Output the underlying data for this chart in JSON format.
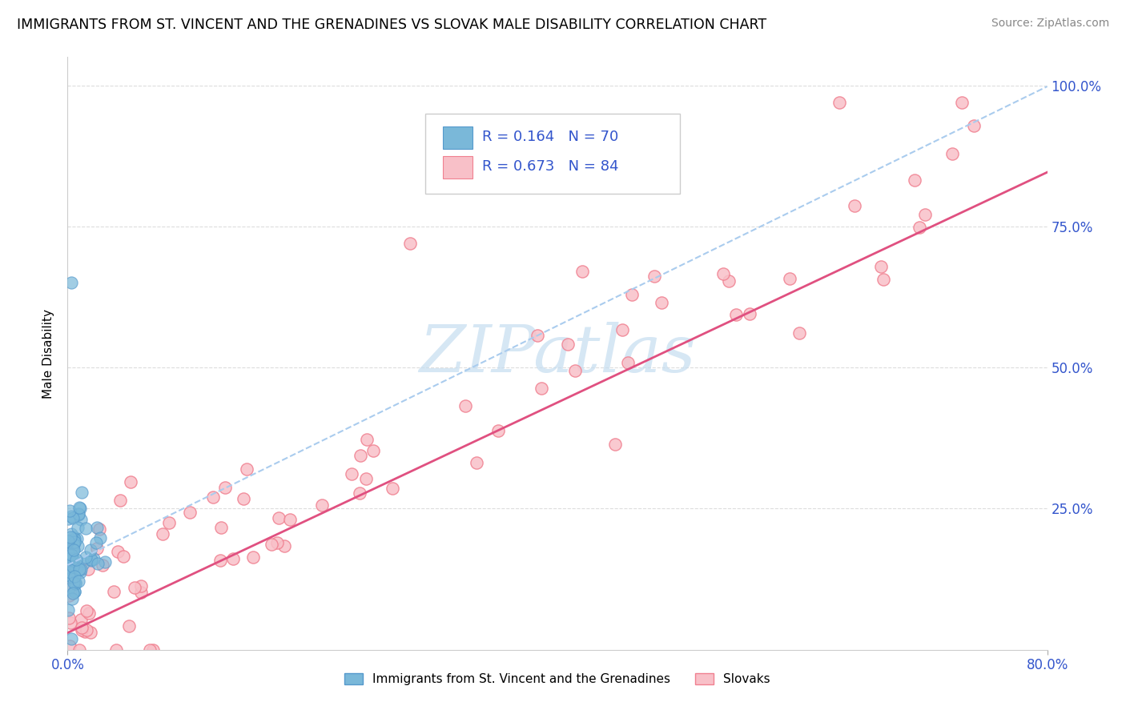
{
  "title": "IMMIGRANTS FROM ST. VINCENT AND THE GRENADINES VS SLOVAK MALE DISABILITY CORRELATION CHART",
  "source": "Source: ZipAtlas.com",
  "ylabel": "Male Disability",
  "y_tick_labels": [
    "100.0%",
    "75.0%",
    "50.0%",
    "25.0%"
  ],
  "y_tick_positions": [
    1.0,
    0.75,
    0.5,
    0.25
  ],
  "legend1_label": "R = 0.164   N = 70",
  "legend2_label": "R = 0.673   N = 84",
  "legend_label_immigrants": "Immigrants from St. Vincent and the Grenadines",
  "legend_label_slovaks": "Slovaks",
  "blue_dot_color": "#7ab8d9",
  "pink_dot_edge_color": "#f08090",
  "pink_dot_face_color": "#f8c0c8",
  "legend_text_color": "#3355cc",
  "watermark_color": "#c5ddf0",
  "watermark_text": "ZIPatlas",
  "xlim": [
    0.0,
    0.8
  ],
  "ylim": [
    0.0,
    1.05
  ],
  "blue_trend_color": "#aaccee",
  "pink_trend_color": "#e05080",
  "grid_color": "#dddddd"
}
